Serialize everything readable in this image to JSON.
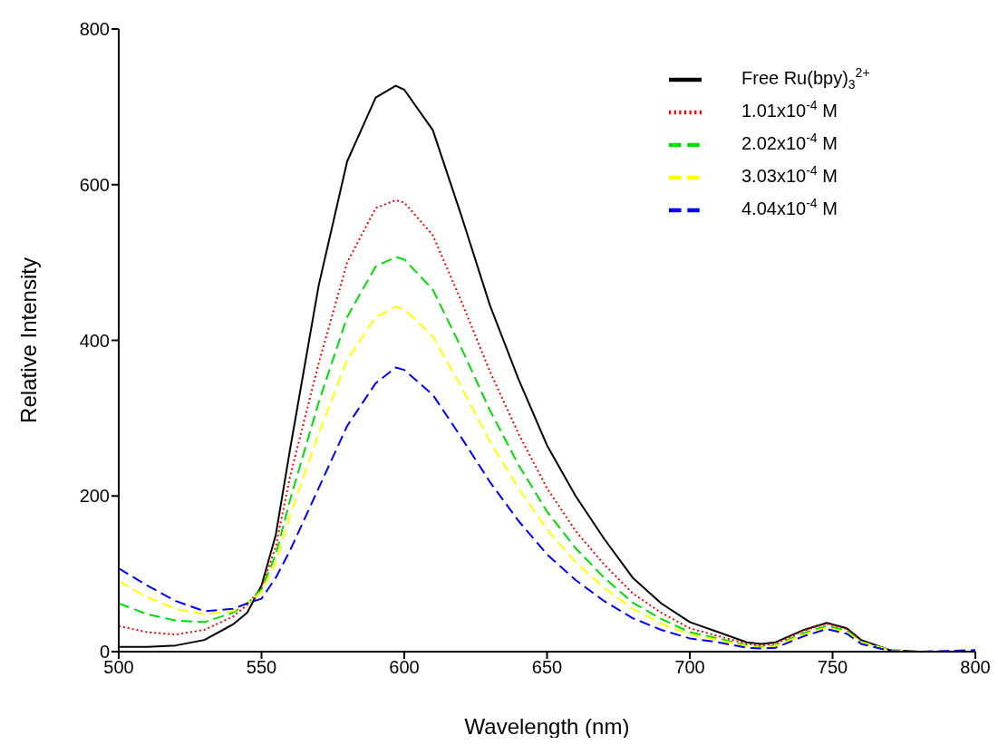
{
  "chart_data": {
    "type": "line",
    "xlabel": "Wavelength (nm)",
    "ylabel": "Relative Intensity",
    "x": [
      500,
      510,
      520,
      530,
      540,
      545,
      550,
      555,
      560,
      570,
      580,
      590,
      597,
      600,
      610,
      620,
      630,
      640,
      650,
      660,
      670,
      680,
      690,
      700,
      710,
      720,
      725,
      730,
      740,
      748,
      755,
      760,
      770,
      780,
      790,
      800
    ],
    "xlim": [
      500,
      800
    ],
    "xticks": [
      500,
      550,
      600,
      650,
      700,
      750,
      800
    ],
    "ylim": [
      0,
      800
    ],
    "yticks": [
      0,
      200,
      400,
      600,
      800
    ],
    "grid": false,
    "legend": "top right",
    "marker": "none",
    "series": [
      {
        "name": "Free Ru(bpy)$_{3}$$^{2+}$",
        "color": "#000000",
        "line_style": "solid",
        "values": [
          6,
          6,
          8,
          15,
          35,
          50,
          85,
          150,
          260,
          470,
          630,
          712,
          727,
          722,
          670,
          560,
          445,
          350,
          265,
          200,
          145,
          95,
          62,
          38,
          25,
          12,
          10,
          12,
          28,
          37,
          30,
          15,
          2,
          0,
          null,
          null
        ]
      },
      {
        "name": "1.01x10$^{-4}$ M",
        "color": "#ff0000",
        "line_style": "dotted",
        "values": [
          33,
          25,
          22,
          28,
          45,
          60,
          82,
          135,
          225,
          370,
          500,
          570,
          580,
          577,
          535,
          450,
          360,
          280,
          210,
          155,
          112,
          75,
          50,
          30,
          20,
          10,
          8,
          10,
          27,
          36,
          29,
          14,
          null,
          null,
          null,
          null
        ]
      },
      {
        "name": "2.02x10$^{-4}$ M",
        "color": "#00dd00",
        "line_style": "dashed",
        "values": [
          62,
          48,
          40,
          38,
          50,
          62,
          80,
          125,
          195,
          320,
          430,
          495,
          507,
          504,
          465,
          390,
          310,
          240,
          180,
          133,
          95,
          63,
          42,
          25,
          17,
          8,
          6,
          8,
          24,
          33,
          27,
          13,
          2,
          0,
          null,
          null
        ]
      },
      {
        "name": "3.03x10$^{-4}$ M",
        "color": "#ffff00",
        "line_style": "dashed",
        "values": [
          90,
          70,
          55,
          48,
          52,
          62,
          77,
          115,
          175,
          280,
          375,
          430,
          443,
          440,
          405,
          340,
          270,
          210,
          157,
          115,
          82,
          55,
          36,
          22,
          15,
          7,
          5,
          7,
          22,
          31,
          25,
          12,
          2,
          0,
          null,
          null
        ]
      },
      {
        "name": "4.04x10$^{-4}$ M",
        "color": "#0000ff",
        "line_style": "dashed",
        "values": [
          107,
          85,
          65,
          52,
          55,
          62,
          68,
          95,
          130,
          210,
          290,
          345,
          365,
          362,
          330,
          275,
          218,
          168,
          125,
          92,
          65,
          43,
          28,
          17,
          12,
          5,
          4,
          5,
          20,
          29,
          23,
          10,
          1,
          0,
          1,
          2
        ]
      }
    ]
  }
}
